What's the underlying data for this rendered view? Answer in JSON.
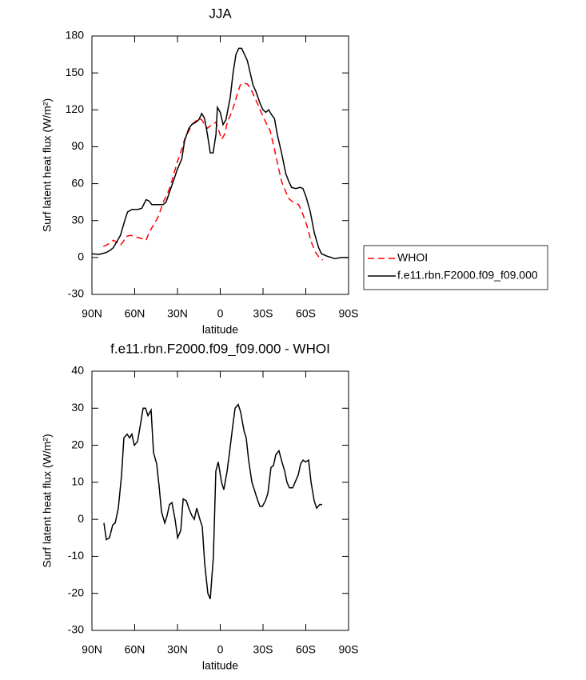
{
  "chart_data": [
    {
      "type": "line",
      "title": "JJA",
      "x_label": "latitude",
      "y_label": "Surf latent heat flux (W/m²)",
      "xlim": [
        90,
        -90
      ],
      "xticks": [
        {
          "value": 90,
          "label": "90N"
        },
        {
          "value": 60,
          "label": "60N"
        },
        {
          "value": 30,
          "label": "30N"
        },
        0,
        {
          "value": -30,
          "label": "30S"
        },
        {
          "value": -60,
          "label": "60S"
        },
        {
          "value": -90,
          "label": "90S"
        }
      ],
      "ylim": [
        -30,
        180
      ],
      "yticks": [
        -30,
        0,
        30,
        60,
        90,
        120,
        150,
        180
      ],
      "legend": "right",
      "series": [
        {
          "name": "WHOI",
          "color": "#ff0000",
          "dashed": true,
          "x": [
            82,
            80,
            77,
            75,
            72,
            70,
            68,
            66,
            63,
            60,
            57,
            54,
            52,
            50,
            47,
            44,
            42,
            40,
            37,
            35,
            32,
            30,
            27,
            25,
            22,
            20,
            17,
            15,
            13,
            11,
            9,
            7,
            5,
            3,
            1,
            -1,
            -3,
            -5,
            -8,
            -10,
            -12,
            -14,
            -16,
            -19,
            -21,
            -23,
            -25,
            -28,
            -31,
            -35,
            -38,
            -41,
            -43,
            -45,
            -48,
            -51,
            -55,
            -58,
            -61,
            -64,
            -67,
            -70,
            -72
          ],
          "values": [
            9,
            10,
            12,
            14,
            12,
            10,
            13,
            17,
            18,
            17,
            16,
            15,
            14,
            20,
            26,
            32,
            38,
            45,
            52,
            58,
            70,
            78,
            88,
            96,
            103,
            108,
            111,
            113,
            112,
            108,
            105,
            107,
            108,
            110,
            103,
            96,
            100,
            110,
            118,
            125,
            133,
            140,
            142,
            141,
            138,
            133,
            128,
            120,
            112,
            103,
            88,
            72,
            62,
            56,
            48,
            45,
            43,
            35,
            25,
            12,
            4,
            -1,
            -2
          ]
        },
        {
          "name": "f.e11.rbn.F2000.f09_f09.000",
          "color": "#000000",
          "dashed": false,
          "x": [
            90,
            85,
            80,
            77,
            75,
            72,
            70,
            67,
            65,
            62,
            58,
            55,
            52,
            50,
            48,
            45,
            40,
            38,
            35,
            32,
            30,
            27,
            25,
            22,
            20,
            17,
            15,
            13,
            11,
            9,
            7,
            5,
            3,
            2,
            0,
            -2,
            -4,
            -7,
            -9,
            -11,
            -13,
            -15,
            -17,
            -19,
            -21,
            -23,
            -25,
            -28,
            -30,
            -32,
            -34,
            -36,
            -38,
            -40,
            -43,
            -46,
            -48,
            -50,
            -53,
            -56,
            -58,
            -60,
            -63,
            -66,
            -69,
            -71,
            -75,
            -78,
            -80,
            -85,
            -90
          ],
          "values": [
            3,
            2.5,
            4,
            6,
            8,
            14,
            18,
            30,
            37,
            39,
            39,
            40,
            47,
            46,
            43,
            43,
            43,
            45,
            55,
            65,
            72,
            80,
            95,
            105,
            108,
            110,
            112,
            117,
            113,
            100,
            85,
            85,
            100,
            122,
            118,
            108,
            112,
            130,
            150,
            165,
            170,
            170,
            165,
            160,
            150,
            140,
            135,
            125,
            120,
            118,
            120,
            116,
            113,
            100,
            85,
            68,
            62,
            57,
            56,
            57,
            56,
            50,
            38,
            20,
            8,
            3,
            1,
            0,
            -1,
            0,
            0
          ]
        }
      ]
    },
    {
      "type": "line",
      "title": "f.e11.rbn.F2000.f09_f09.000 - WHOI",
      "x_label": "latitude",
      "y_label": "Surf latent heat flux (W/m²)",
      "xlim": [
        90,
        -90
      ],
      "xticks": [
        {
          "value": 90,
          "label": "90N"
        },
        {
          "value": 60,
          "label": "60N"
        },
        {
          "value": 30,
          "label": "30N"
        },
        0,
        {
          "value": -30,
          "label": "30S"
        },
        {
          "value": -60,
          "label": "60S"
        },
        {
          "value": -90,
          "label": "90S"
        }
      ],
      "ylim": [
        -30,
        40
      ],
      "yticks": [
        -30,
        -20,
        -10,
        0,
        10,
        20,
        30,
        40
      ],
      "series": [
        {
          "color": "#000000",
          "dashed": false,
          "x": [
            81.6,
            79.9,
            77.7,
            75.4,
            73.7,
            71.5,
            69.2,
            67.6,
            65.3,
            63.6,
            62,
            60.3,
            58,
            55.8,
            54.1,
            52.4,
            50.7,
            48.5,
            46.8,
            44.6,
            42.9,
            41.2,
            38.9,
            37.3,
            35.6,
            33.9,
            31.7,
            29.9,
            27.7,
            26,
            23.8,
            22.1,
            19.9,
            18.2,
            16.5,
            14.3,
            12.6,
            10.9,
            8.7,
            7,
            4.8,
            3.1,
            1.4,
            -0.9,
            -2.5,
            -4.8,
            -6.5,
            -8.7,
            -10.4,
            -12.6,
            -14.3,
            -16.6,
            -18.2,
            -19.9,
            -22.2,
            -23.9,
            -25.5,
            -27.8,
            -29.5,
            -31.7,
            -33.4,
            -35.6,
            -37.3,
            -39,
            -41.2,
            -42.9,
            -45.2,
            -46.8,
            -48.5,
            -50.8,
            -52.5,
            -54.7,
            -56.4,
            -58.1,
            -59.8,
            -62,
            -63.7,
            -65.9,
            -67.6,
            -69.8,
            -71.5
          ],
          "values": [
            -1,
            -5.5,
            -5,
            -1.5,
            -1,
            3,
            12,
            22,
            23,
            22,
            23,
            20,
            21,
            26,
            30,
            30,
            28,
            29.5,
            18,
            15,
            9,
            2,
            -1,
            1,
            4,
            4.5,
            0,
            -5,
            -3,
            5.5,
            5,
            3,
            1,
            0,
            3,
            0,
            -2,
            -12,
            -20,
            -21.5,
            -10,
            13,
            15.5,
            10,
            8,
            13,
            18,
            25,
            30,
            31,
            29,
            24,
            22,
            16,
            10,
            8,
            6,
            3.5,
            3.5,
            5,
            7,
            14,
            14.5,
            17.5,
            18.5,
            16,
            13,
            10,
            8.5,
            8.5,
            10,
            12,
            15,
            16,
            15.5,
            16,
            10,
            5,
            3,
            4,
            4
          ]
        }
      ]
    }
  ]
}
